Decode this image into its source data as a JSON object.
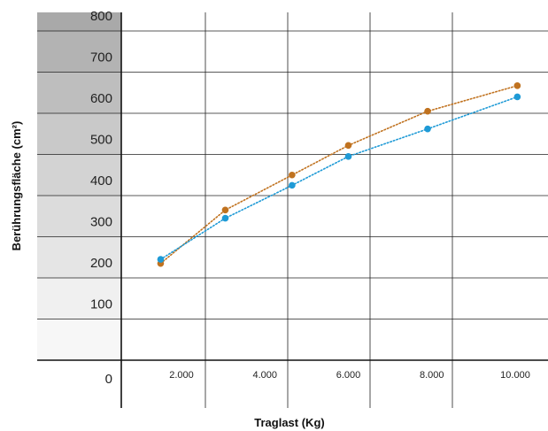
{
  "chart_data": {
    "type": "line",
    "xlabel": "Traglast (Kg)",
    "ylabel": "Berührungsfläche (cm²)",
    "ylim": [
      0,
      800
    ],
    "xlim": [
      0,
      10500
    ],
    "y_ticks": [
      {
        "value": 0,
        "label": "0"
      },
      {
        "value": 100,
        "label": "100"
      },
      {
        "value": 200,
        "label": "200"
      },
      {
        "value": 300,
        "label": "300"
      },
      {
        "value": 400,
        "label": "400"
      },
      {
        "value": 500,
        "label": "500"
      },
      {
        "value": 600,
        "label": "600"
      },
      {
        "value": 700,
        "label": "700"
      },
      {
        "value": 800,
        "label": "800"
      }
    ],
    "x_ticks": [
      {
        "value": 2000,
        "label": "2.000"
      },
      {
        "value": 4000,
        "label": "4.000"
      },
      {
        "value": 6000,
        "label": "6.000"
      },
      {
        "value": 8000,
        "label": "8.000"
      },
      {
        "value": 10000,
        "label": "10.000"
      }
    ],
    "grid": true,
    "legend": "none",
    "band_colors": [
      "#f7f7f7",
      "#f0f0f0",
      "#e5e5e5",
      "#dcdcdc",
      "#d3d3d3",
      "#c9c9c9",
      "#bebebe",
      "#b3b3b3",
      "#a9a9a9"
    ],
    "series": [
      {
        "color": "#c0721f",
        "points": [
          {
            "x": 1500,
            "y": 235
          },
          {
            "x": 3050,
            "y": 365
          },
          {
            "x": 4650,
            "y": 450
          },
          {
            "x": 6000,
            "y": 522
          },
          {
            "x": 7900,
            "y": 605
          },
          {
            "x": 10050,
            "y": 667
          }
        ]
      },
      {
        "color": "#1e9ad6",
        "points": [
          {
            "x": 1500,
            "y": 245
          },
          {
            "x": 3050,
            "y": 345
          },
          {
            "x": 4650,
            "y": 425
          },
          {
            "x": 6000,
            "y": 495
          },
          {
            "x": 7900,
            "y": 562
          },
          {
            "x": 10050,
            "y": 640
          }
        ]
      }
    ]
  }
}
